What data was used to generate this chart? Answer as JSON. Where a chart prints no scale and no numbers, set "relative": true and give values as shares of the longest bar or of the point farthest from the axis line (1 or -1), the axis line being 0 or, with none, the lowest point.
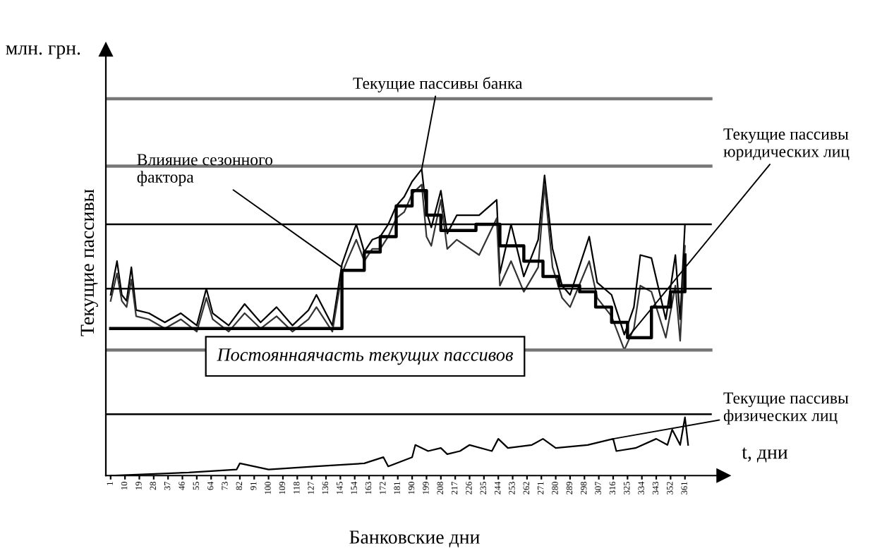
{
  "chart_data": {
    "type": "line",
    "relative": true,
    "xlabel": "Банковские дни",
    "ylabel": "Текущие пассивы",
    "xlim": [
      -2,
      385
    ],
    "xticks": [
      1,
      10,
      19,
      28,
      37,
      46,
      55,
      64,
      73,
      82,
      91,
      100,
      109,
      118,
      127,
      136,
      145,
      154,
      163,
      172,
      181,
      190,
      199,
      208,
      217,
      226,
      235,
      244,
      253,
      262,
      271,
      280,
      289,
      298,
      307,
      316,
      325,
      334,
      343,
      352,
      361
    ],
    "grid": false,
    "legend": false,
    "marker": "none",
    "line_style": "solid",
    "series": [
      {
        "color": "#000000",
        "x": [
          1,
          5,
          8,
          11,
          14,
          17,
          25,
          35,
          45,
          55,
          61,
          65,
          75,
          85,
          95,
          105,
          115,
          125,
          130,
          140,
          146,
          150,
          155,
          160,
          165,
          170,
          175,
          180,
          185,
          190,
          196,
          199,
          202,
          208,
          212,
          218,
          232,
          243,
          245,
          252,
          260,
          269,
          273,
          278,
          284,
          289,
          301,
          306,
          315,
          323,
          329,
          333,
          340,
          349,
          355,
          358,
          361
        ],
        "values": [
          0.59,
          0.7,
          0.59,
          0.57,
          0.68,
          0.54,
          0.53,
          0.5,
          0.53,
          0.49,
          0.61,
          0.53,
          0.49,
          0.56,
          0.5,
          0.55,
          0.49,
          0.54,
          0.59,
          0.49,
          0.69,
          0.75,
          0.82,
          0.73,
          0.77,
          0.78,
          0.82,
          0.88,
          0.91,
          0.96,
          1.0,
          0.86,
          0.81,
          0.93,
          0.79,
          0.85,
          0.85,
          0.9,
          0.66,
          0.82,
          0.65,
          0.77,
          0.98,
          0.74,
          0.62,
          0.59,
          0.78,
          0.63,
          0.59,
          0.46,
          0.55,
          0.72,
          0.71,
          0.51,
          0.72,
          0.51,
          0.82
        ]
      },
      {
        "color": "#333333",
        "x": [
          1,
          5,
          8,
          11,
          14,
          17,
          25,
          35,
          45,
          55,
          61,
          65,
          75,
          85,
          95,
          105,
          115,
          125,
          130,
          140,
          146,
          150,
          155,
          160,
          165,
          170,
          175,
          180,
          185,
          190,
          196,
          199,
          202,
          208,
          212,
          218,
          232,
          243,
          245,
          252,
          260,
          269,
          273,
          278,
          284,
          289,
          301,
          306,
          315,
          323,
          329,
          333,
          340,
          349,
          355,
          358,
          361
        ],
        "values": [
          0.57,
          0.66,
          0.57,
          0.55,
          0.64,
          0.52,
          0.51,
          0.48,
          0.51,
          0.47,
          0.58,
          0.51,
          0.47,
          0.53,
          0.48,
          0.52,
          0.47,
          0.51,
          0.55,
          0.47,
          0.66,
          0.71,
          0.77,
          0.7,
          0.74,
          0.74,
          0.78,
          0.84,
          0.86,
          0.92,
          0.95,
          0.78,
          0.75,
          0.9,
          0.74,
          0.77,
          0.72,
          0.84,
          0.62,
          0.7,
          0.6,
          0.68,
          0.95,
          0.68,
          0.58,
          0.55,
          0.7,
          0.58,
          0.52,
          0.41,
          0.48,
          0.62,
          0.6,
          0.45,
          0.62,
          0.44,
          0.75
        ]
      },
      {
        "type": "step",
        "color": "#000000",
        "x": [
          1,
          146,
          160,
          170,
          180,
          190,
          199,
          208,
          218,
          230,
          245,
          260,
          272,
          282,
          295,
          305,
          315,
          325,
          340,
          352,
          361
        ],
        "values": [
          0.48,
          0.67,
          0.73,
          0.78,
          0.88,
          0.93,
          0.85,
          0.8,
          0.8,
          0.82,
          0.75,
          0.7,
          0.65,
          0.62,
          0.6,
          0.55,
          0.5,
          0.45,
          0.55,
          0.6,
          0.72
        ]
      },
      {
        "color": "#000000",
        "x": [
          1,
          50,
          80,
          82,
          100,
          130,
          160,
          172,
          175,
          190,
          192,
          200,
          208,
          212,
          220,
          226,
          240,
          244,
          250,
          265,
          272,
          280,
          300,
          316,
          318,
          330,
          343,
          350,
          353,
          358,
          361,
          363
        ],
        "values": [
          0.0,
          0.01,
          0.02,
          0.04,
          0.02,
          0.03,
          0.04,
          0.06,
          0.03,
          0.06,
          0.1,
          0.08,
          0.09,
          0.07,
          0.08,
          0.1,
          0.08,
          0.12,
          0.09,
          0.1,
          0.12,
          0.09,
          0.1,
          0.12,
          0.08,
          0.09,
          0.12,
          0.1,
          0.15,
          0.1,
          0.19,
          0.1
        ]
      }
    ],
    "ref_lines": [
      {
        "axis": "y",
        "value": 1.23,
        "color": "#777777"
      },
      {
        "axis": "y",
        "value": 1.01,
        "color": "#777777"
      },
      {
        "axis": "y",
        "value": 0.82,
        "color": "#000000"
      },
      {
        "axis": "y",
        "value": 0.61,
        "color": "#000000"
      },
      {
        "axis": "y",
        "value": 0.41,
        "color": "#777777"
      },
      {
        "axis": "y",
        "value": 0.2,
        "color": "#000000"
      }
    ],
    "annotations": [
      {
        "text": "Текущие пассивы банка",
        "x": 196,
        "y": 1.0
      },
      {
        "text": "Влияние сезонного\nфактора",
        "x": 146,
        "y": 0.68
      },
      {
        "text": "Текущие пассивы\nюридических лиц",
        "x": 325,
        "y": 0.45
      },
      {
        "text": "Текущие пассивы\nфизических лиц",
        "x": 316,
        "y": 0.12
      },
      "Постояннаячасть текущих пассивов",
      "млн. грн.",
      "t, дни"
    ]
  }
}
